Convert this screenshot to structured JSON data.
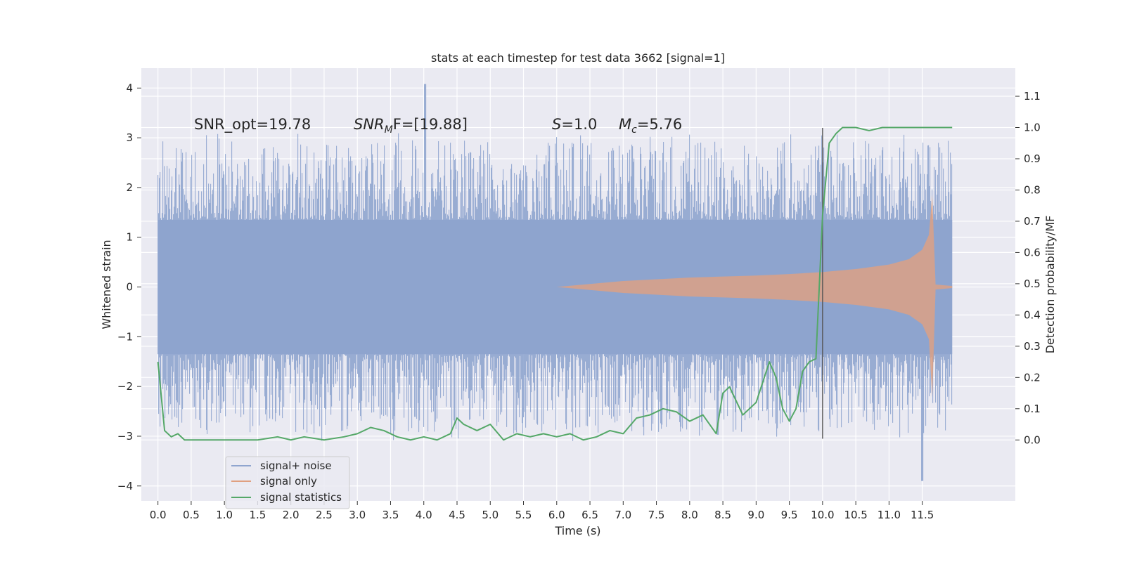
{
  "chart_data": {
    "type": "line",
    "title": "stats at each timestep for test data 3662 [signal=1]",
    "xlabel": "Time (s)",
    "ylabel": "Whitened strain",
    "y2label": "Detection probability/MF",
    "xlim": [
      -0.25,
      12.9
    ],
    "ylim": [
      -4.3,
      4.4
    ],
    "y2lim": [
      -0.195,
      1.19
    ],
    "x_ticks": [
      "0.0",
      "0.5",
      "1.0",
      "1.5",
      "2.0",
      "2.5",
      "3.0",
      "3.5",
      "4.0",
      "4.5",
      "5.0",
      "5.5",
      "6.0",
      "6.5",
      "7.0",
      "7.5",
      "8.0",
      "8.5",
      "9.0",
      "9.5",
      "10.0",
      "10.5",
      "11.0",
      "11.5"
    ],
    "y_ticks": [
      "4",
      "3",
      "2",
      "1",
      "0",
      "−1",
      "−2",
      "−3",
      "−4"
    ],
    "y2_ticks": [
      "1.1",
      "1.0",
      "0.9",
      "0.8",
      "0.7",
      "0.6",
      "0.5",
      "0.4",
      "0.3",
      "0.2",
      "0.1",
      "0.0"
    ],
    "grid": true,
    "legend_position": "lower-left",
    "annotations": {
      "snr_opt": "SNR_opt=19.78",
      "snr_mf_label": "SNR",
      "snr_mf_sub": "M",
      "snr_mf_rest": "F=[19.88]",
      "s_label": "S",
      "s_rest": "=1.0",
      "mc_label": "M",
      "mc_sub": "c",
      "mc_rest": "=5.76"
    },
    "vertical_line_x": 10.0,
    "series": [
      {
        "name": "signal+ noise",
        "color": "#8fa5cf",
        "x_range": [
          0.0,
          11.95
        ],
        "typical_band": [
          -1.35,
          1.35
        ],
        "max_value": 4.08,
        "min_value": -3.9
      },
      {
        "name": "signal only",
        "color": "#e0a080",
        "envelope_x": [
          6.0,
          7.0,
          8.0,
          9.0,
          9.5,
          10.0,
          10.5,
          11.0,
          11.3,
          11.5,
          11.6,
          11.65,
          11.7,
          11.95
        ],
        "envelope_amp": [
          0.0,
          0.12,
          0.19,
          0.23,
          0.26,
          0.3,
          0.36,
          0.45,
          0.56,
          0.75,
          1.05,
          1.85,
          0.05,
          0.02
        ]
      },
      {
        "name": "signal statistics",
        "color": "#55a868",
        "x": [
          0.0,
          0.1,
          0.2,
          0.3,
          0.4,
          0.5,
          0.6,
          0.8,
          1.0,
          1.5,
          1.8,
          2.0,
          2.2,
          2.5,
          2.8,
          3.0,
          3.2,
          3.4,
          3.6,
          3.8,
          4.0,
          4.2,
          4.4,
          4.5,
          4.6,
          4.8,
          5.0,
          5.2,
          5.4,
          5.6,
          5.8,
          6.0,
          6.2,
          6.4,
          6.6,
          6.8,
          7.0,
          7.2,
          7.4,
          7.6,
          7.8,
          8.0,
          8.2,
          8.4,
          8.5,
          8.6,
          8.8,
          9.0,
          9.2,
          9.3,
          9.4,
          9.5,
          9.6,
          9.7,
          9.8,
          9.9,
          10.0,
          10.1,
          10.2,
          10.3,
          10.5,
          10.7,
          10.9,
          11.0,
          11.5,
          11.95
        ],
        "y": [
          0.25,
          0.03,
          0.01,
          0.02,
          0.0,
          0.0,
          0.0,
          0.0,
          0.0,
          0.0,
          0.01,
          0.0,
          0.01,
          0.0,
          0.01,
          0.02,
          0.04,
          0.03,
          0.01,
          0.0,
          0.01,
          0.0,
          0.02,
          0.07,
          0.05,
          0.03,
          0.05,
          0.0,
          0.02,
          0.01,
          0.02,
          0.01,
          0.02,
          0.0,
          0.01,
          0.03,
          0.02,
          0.07,
          0.08,
          0.1,
          0.09,
          0.06,
          0.08,
          0.02,
          0.15,
          0.17,
          0.08,
          0.12,
          0.25,
          0.2,
          0.1,
          0.06,
          0.1,
          0.22,
          0.25,
          0.26,
          0.72,
          0.95,
          0.98,
          1.0,
          1.0,
          0.99,
          1.0,
          1.0,
          1.0,
          1.0
        ]
      }
    ]
  }
}
